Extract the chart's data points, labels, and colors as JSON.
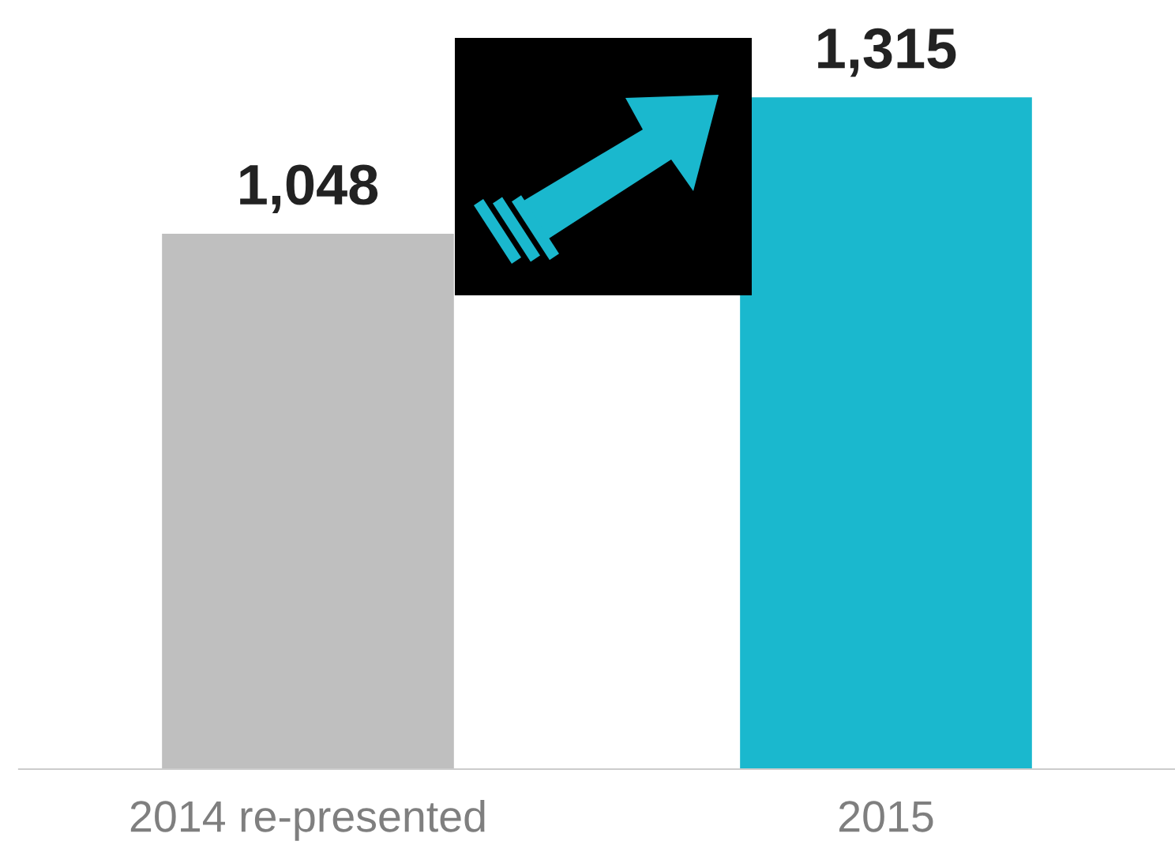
{
  "chart_data": {
    "type": "bar",
    "categories": [
      "2014 re-presented",
      "2015"
    ],
    "values": [
      1048,
      1315
    ],
    "colors": [
      "#bfbfbf",
      "#1ab8ce"
    ],
    "data_labels": true,
    "value_labels": [
      "1,048",
      "1,315"
    ],
    "grid": false,
    "legend": false
  }
}
